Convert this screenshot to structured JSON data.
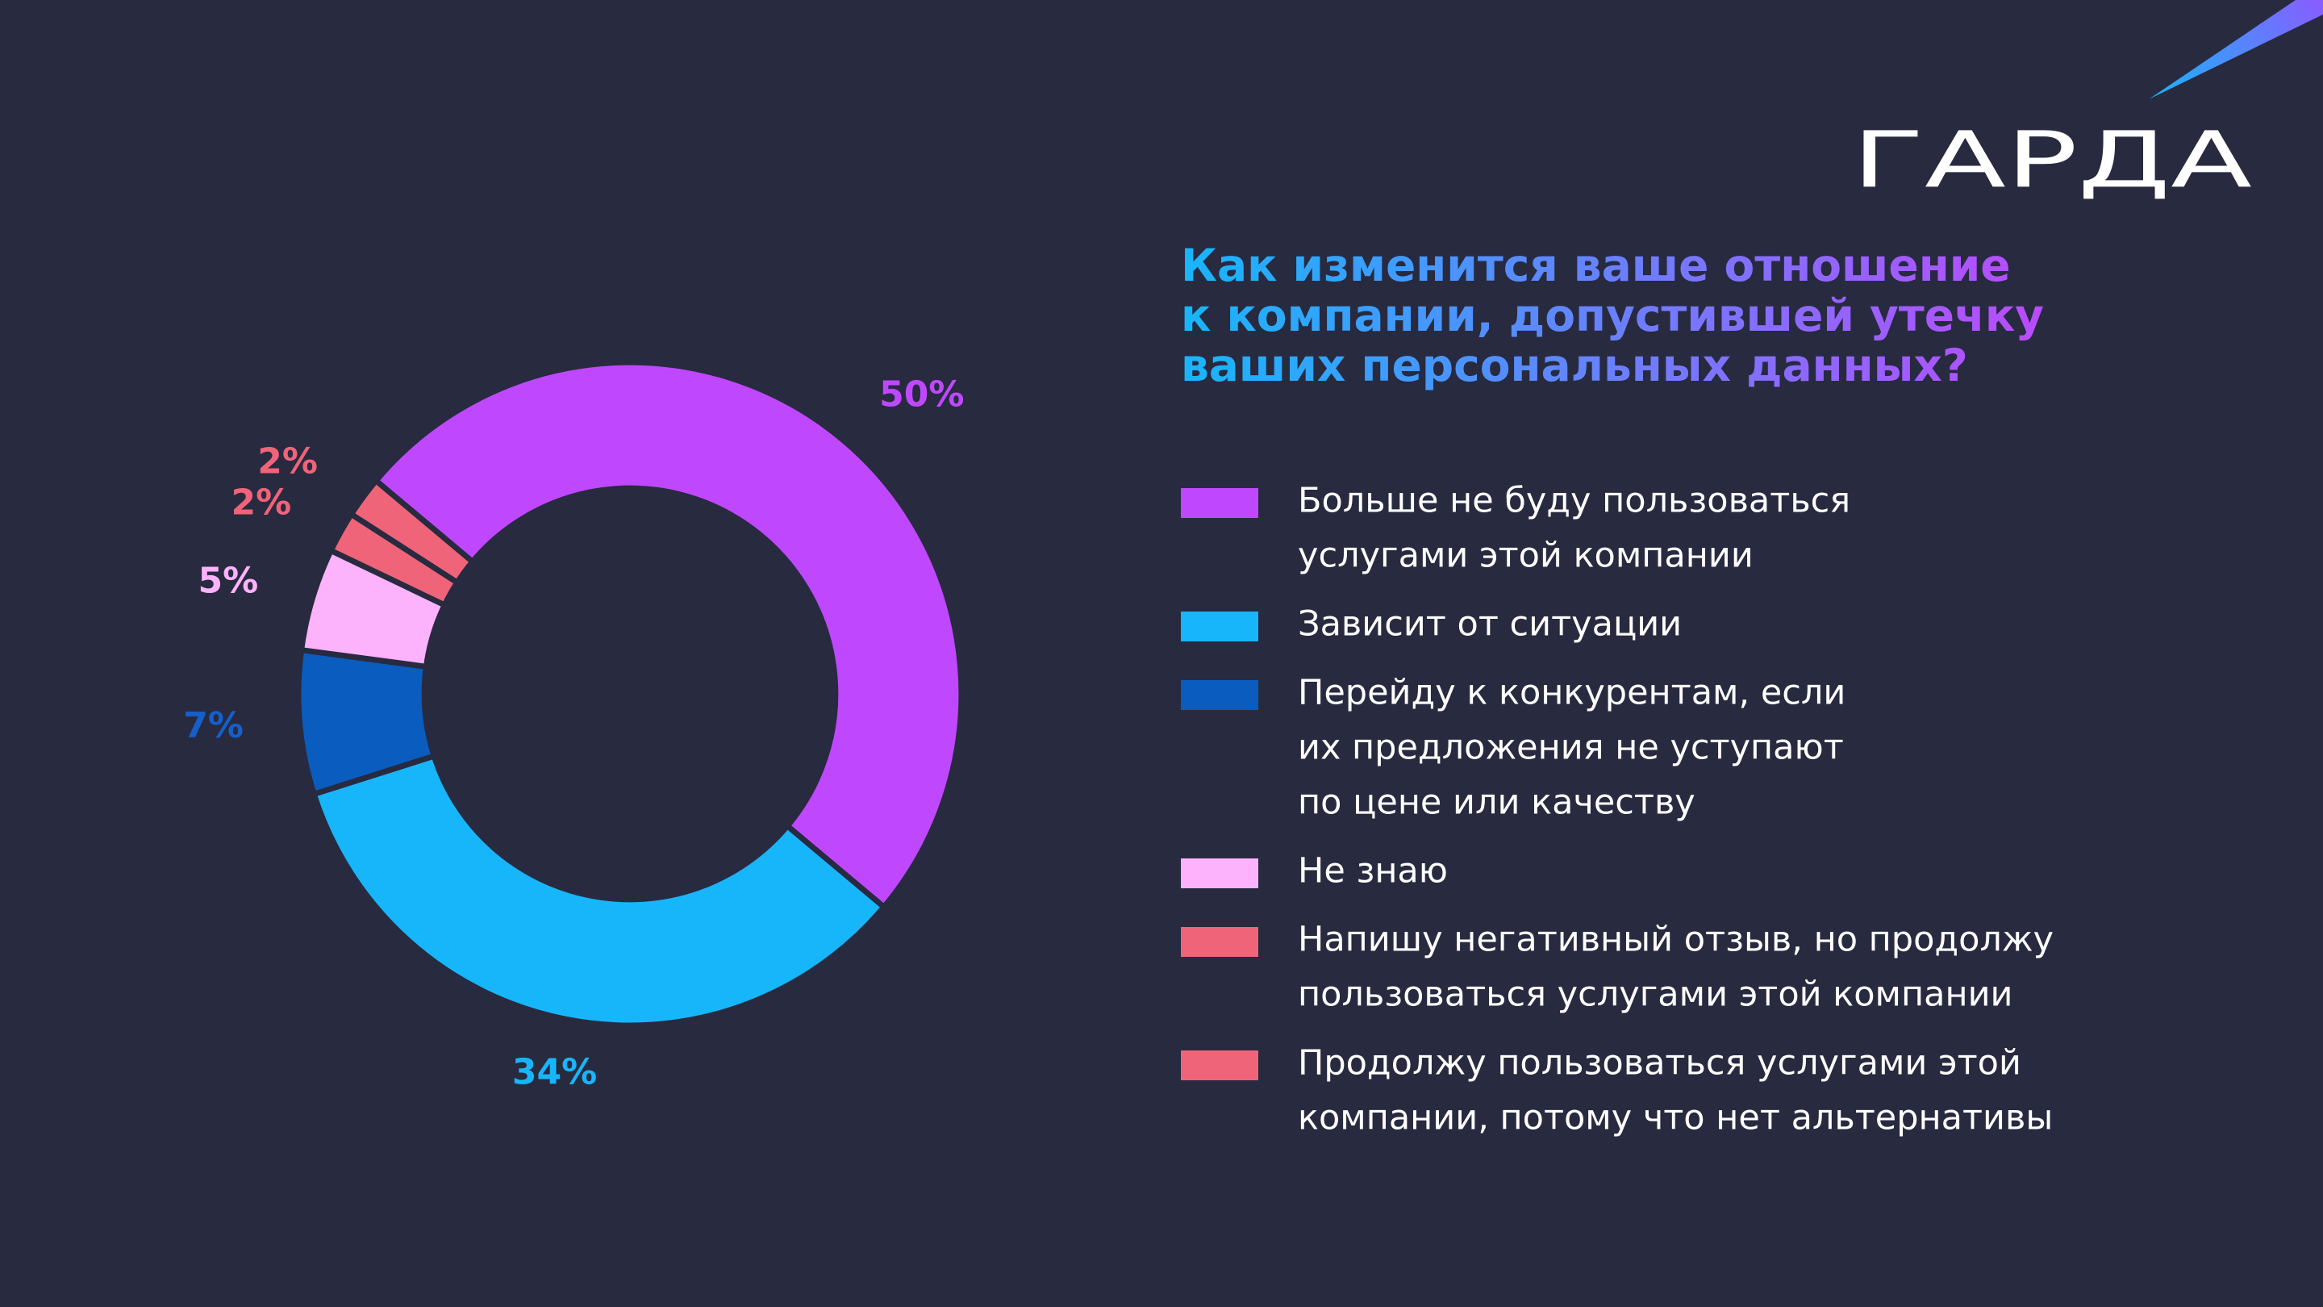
{
  "logo": "ГАРДА",
  "chart_data": {
    "type": "pie",
    "title_lines": [
      "Как изменится ваше отношение",
      "к компании, допустившей утечку",
      "ваших персональных данных?"
    ],
    "categories": [
      [
        "Больше не буду пользоваться",
        "услугами этой компании"
      ],
      [
        "Зависит от ситуации"
      ],
      [
        "Перейду к конкурентам, если",
        "их предложения не уступают",
        "по цене или качеству"
      ],
      [
        "Не знаю"
      ],
      [
        "Напишу негативный отзыв, но продолжу",
        "пользоваться услугами этой компании"
      ],
      [
        "Продолжу пользоваться услугами этой",
        "компании, потому что нет альтернативы"
      ]
    ],
    "values": [
      50,
      34,
      7,
      5,
      2,
      2
    ],
    "value_labels": [
      "50%",
      "34%",
      "7%",
      "5%",
      "2%",
      "2%"
    ],
    "colors": [
      "#bf48ff",
      "#17b6fb",
      "#0a5cbe",
      "#fdb3fb",
      "#ef6479",
      "#ef6479"
    ],
    "label_colors": [
      "#bf48ff",
      "#17b6fb",
      "#1560c8",
      "#fdb3fb",
      "#ef6479",
      "#ef6479"
    ],
    "start_angle": 310,
    "hole": 0.62
  }
}
